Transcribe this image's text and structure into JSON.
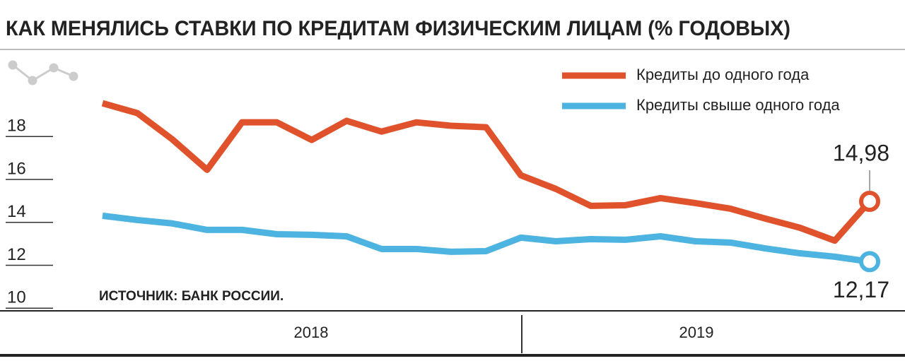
{
  "chart_data": {
    "type": "line",
    "title": "КАК МЕНЯЛИСЬ СТАВКИ ПО КРЕДИТАМ ФИЗИЧЕСКИМ ЛИЦАМ (% ГОДОВЫХ)",
    "annotation": "ИСТОЧНИК: БАНК РОССИИ.",
    "year_labels": [
      "2018",
      "2019"
    ],
    "categories": [
      null,
      null,
      null,
      null,
      null,
      null,
      null,
      null,
      null,
      null,
      null,
      null,
      null,
      null,
      null,
      null,
      null,
      null,
      null,
      null,
      null,
      null,
      null
    ],
    "series": [
      {
        "name": "Кредиты до одного года",
        "color": "#e0522b",
        "values": [
          19.55,
          19.09,
          17.87,
          16.45,
          18.66,
          18.66,
          17.84,
          18.73,
          18.23,
          18.66,
          18.5,
          18.43,
          16.19,
          15.56,
          14.77,
          14.8,
          15.13,
          14.9,
          14.64,
          14.18,
          13.75,
          13.15,
          14.98
        ],
        "value_labels": [
          null,
          null,
          null,
          null,
          null,
          null,
          null,
          null,
          null,
          null,
          null,
          null,
          null,
          null,
          null,
          null,
          null,
          null,
          null,
          null,
          null,
          null,
          "14,98"
        ]
      },
      {
        "name": "Кредиты свыше одного года",
        "color": "#4db3e0",
        "values": [
          14.31,
          14.11,
          13.95,
          13.65,
          13.65,
          13.45,
          13.42,
          13.35,
          12.76,
          12.76,
          12.63,
          12.66,
          13.29,
          13.12,
          13.22,
          13.19,
          13.35,
          13.12,
          13.06,
          12.79,
          12.56,
          12.4,
          12.17
        ],
        "value_labels": [
          null,
          null,
          null,
          null,
          null,
          null,
          null,
          null,
          null,
          null,
          null,
          null,
          null,
          null,
          null,
          null,
          null,
          null,
          null,
          null,
          null,
          null,
          "12,17"
        ]
      }
    ],
    "ylim": [
      10,
      22
    ],
    "yticks": [
      10,
      12,
      14,
      16,
      18
    ]
  }
}
